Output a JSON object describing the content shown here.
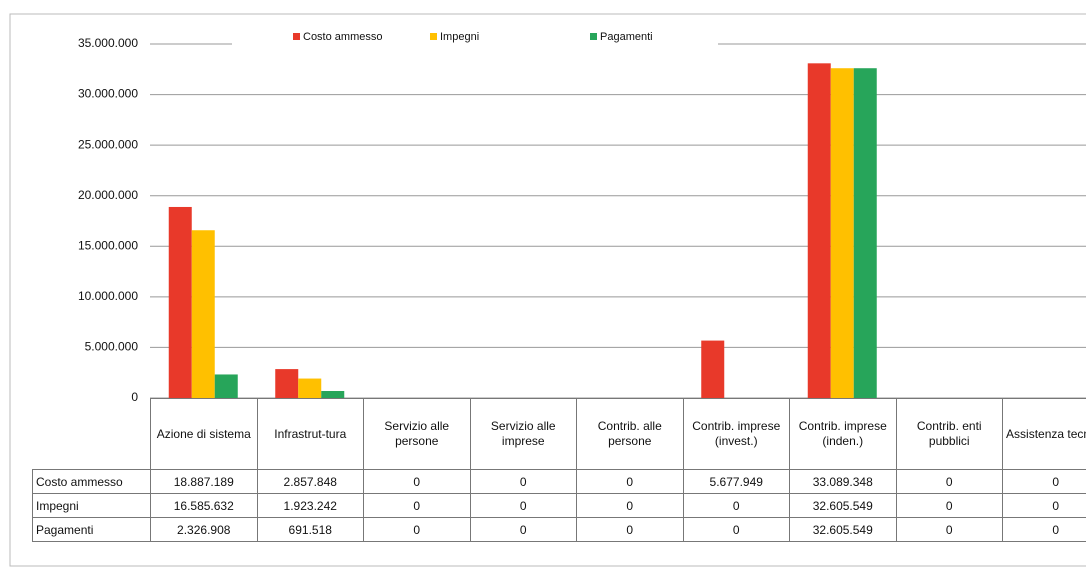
{
  "chart_data": {
    "type": "bar",
    "categories": [
      "Azione di sistema",
      "Infrastrut-tura",
      "Servizio alle persone",
      "Servizio alle imprese",
      "Contrib. alle persone",
      "Contrib. imprese (invest.)",
      "Contrib. imprese (inden.)",
      "Contrib. enti pubblici",
      "Assistenza tecnica"
    ],
    "series": [
      {
        "name": "Costo ammesso",
        "color": "#e8392a",
        "values": [
          18887189,
          2857848,
          0,
          0,
          0,
          5677949,
          33089348,
          0,
          0
        ],
        "value_labels": [
          "18.887.189",
          "2.857.848",
          "0",
          "0",
          "0",
          "5.677.949",
          "33.089.348",
          "0",
          "0"
        ]
      },
      {
        "name": "Impegni",
        "color": "#ffc000",
        "values": [
          16585632,
          1923242,
          0,
          0,
          0,
          0,
          32605549,
          0,
          0
        ],
        "value_labels": [
          "16.585.632",
          "1.923.242",
          "0",
          "0",
          "0",
          "0",
          "32.605.549",
          "0",
          "0"
        ]
      },
      {
        "name": "Pagamenti",
        "color": "#27a55a",
        "values": [
          2326908,
          691518,
          0,
          0,
          0,
          0,
          32605549,
          0,
          0
        ],
        "value_labels": [
          "2.326.908",
          "691.518",
          "0",
          "0",
          "0",
          "0",
          "32.605.549",
          "0",
          "0"
        ]
      }
    ],
    "ylim": [
      0,
      35000000
    ],
    "yticks": [
      0,
      {
        "value": 5000000,
        "label": "5.000.000"
      },
      {
        "value": 10000000,
        "label": "10.000.000"
      },
      {
        "value": 15000000,
        "label": "15.000.000"
      },
      {
        "value": 20000000,
        "label": "20.000.000"
      },
      {
        "value": 25000000,
        "label": "25.000.000"
      },
      {
        "value": 30000000,
        "label": "30.000.000"
      },
      {
        "value": 35000000,
        "label": "35.000.000"
      }
    ],
    "grid": true,
    "legend": "top"
  }
}
